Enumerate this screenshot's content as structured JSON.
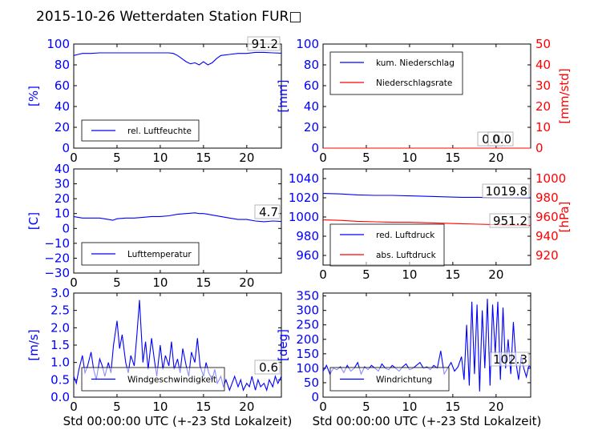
{
  "title": "2015-10-26 Wetterdaten Station FUR□",
  "colors": {
    "blue": "#0000ff",
    "red": "#ff0000",
    "black": "#000000"
  },
  "chart_data": [
    {
      "id": "humidity",
      "type": "line",
      "xlim": [
        0,
        24
      ],
      "ylim": [
        0,
        100
      ],
      "xticks": [
        "0",
        "5",
        "10",
        "15",
        "20"
      ],
      "yticks": [
        "0",
        "20",
        "40",
        "60",
        "80",
        "100"
      ],
      "ylabel": "[%]",
      "xlabel": "",
      "legend": "bottom-left",
      "series": [
        {
          "name": "rel. Luftfeuchte",
          "color": "#0000ff",
          "x": [
            0,
            0.5,
            1,
            2,
            3,
            4,
            5,
            6,
            7,
            8,
            9,
            10,
            11,
            11.5,
            12,
            12.5,
            13,
            13.5,
            14,
            14.5,
            15,
            15.5,
            16,
            16.5,
            17,
            18,
            19,
            20,
            21,
            22,
            23,
            24
          ],
          "y": [
            89,
            90,
            91,
            91,
            91.5,
            91.5,
            91.5,
            91.5,
            91.5,
            91.5,
            91.5,
            91.5,
            91.5,
            91,
            89,
            86,
            83,
            81,
            82,
            80,
            83,
            80,
            82,
            86,
            89,
            90,
            91,
            91,
            92,
            92,
            91.5,
            91.2
          ]
        }
      ],
      "annotation": "91.2"
    },
    {
      "id": "precip",
      "type": "line",
      "xlim": [
        0,
        24
      ],
      "ylim": [
        0,
        100
      ],
      "y2lim": [
        0,
        50
      ],
      "xticks": [
        "0",
        "5",
        "10",
        "15",
        "20"
      ],
      "yticks": [
        "0",
        "20",
        "40",
        "60",
        "80",
        "100"
      ],
      "y2ticks": [
        "0",
        "10",
        "20",
        "30",
        "40",
        "50"
      ],
      "ylabel": "[mm]",
      "y2label": "[mm/std]",
      "xlabel": "",
      "legend": "top-left",
      "series": [
        {
          "name": "kum. Niederschlag",
          "color": "#0000ff",
          "axis": "left",
          "x": [
            0,
            24
          ],
          "y": [
            0,
            0
          ]
        },
        {
          "name": "Niederschlagsrate",
          "color": "#ff0000",
          "axis": "right",
          "x": [
            0,
            24
          ],
          "y": [
            0,
            0
          ]
        }
      ],
      "annotations": [
        "0.0",
        "0.0"
      ]
    },
    {
      "id": "temperature",
      "type": "line",
      "xlim": [
        0,
        24
      ],
      "ylim": [
        -30,
        40
      ],
      "xticks": [
        "0",
        "5",
        "10",
        "15",
        "20"
      ],
      "yticks": [
        "−30",
        "−20",
        "−10",
        "0",
        "10",
        "20",
        "30",
        "40"
      ],
      "ylabel": "[C]",
      "xlabel": "",
      "legend": "bottom-left",
      "series": [
        {
          "name": "Lufttemperatur",
          "color": "#0000ff",
          "x": [
            0,
            0.5,
            1,
            2,
            3,
            4,
            4.5,
            5,
            6,
            7,
            8,
            9,
            10,
            11,
            12,
            13,
            14,
            14.5,
            15,
            15.5,
            16,
            17,
            18,
            19,
            20,
            21,
            22,
            23,
            24
          ],
          "y": [
            8,
            7.5,
            7,
            7,
            7,
            6,
            5.5,
            6.5,
            7,
            7,
            7.5,
            8,
            8,
            8.5,
            9.5,
            10,
            10.5,
            10,
            10,
            9.5,
            9,
            8,
            7,
            6,
            6,
            5,
            4.5,
            5,
            4.7
          ]
        }
      ],
      "annotation": "4.7"
    },
    {
      "id": "pressure",
      "type": "line",
      "xlim": [
        0,
        24
      ],
      "ylim": [
        950,
        1050
      ],
      "y2lim": [
        910,
        1010
      ],
      "xticks": [
        "0",
        "5",
        "10",
        "15",
        "20"
      ],
      "yticks": [
        "960",
        "980",
        "1000",
        "1020",
        "1040"
      ],
      "y2ticks": [
        "920",
        "940",
        "960",
        "980",
        "1000"
      ],
      "y2label": "[hPa]",
      "xlabel": "",
      "legend": "bottom-left",
      "series": [
        {
          "name": "red. Luftdruck",
          "color": "#0000ff",
          "axis": "left",
          "x": [
            0,
            2,
            4,
            6,
            8,
            10,
            12,
            14,
            16,
            18,
            20,
            22,
            24
          ],
          "y": [
            1024.5,
            1024,
            1023,
            1022.5,
            1022.5,
            1022,
            1021.5,
            1021,
            1020.5,
            1020.5,
            1020,
            1020,
            1019.8
          ]
        },
        {
          "name": "abs. Luftdruck",
          "color": "#ff0000",
          "axis": "right",
          "x": [
            0,
            2,
            4,
            6,
            8,
            10,
            12,
            14,
            16,
            18,
            20,
            22,
            24
          ],
          "y": [
            957,
            956.5,
            955.5,
            955,
            954.5,
            954.5,
            954,
            953.5,
            953,
            952.5,
            952,
            951.5,
            951.2
          ]
        }
      ],
      "annotations": [
        "1019.8",
        "951.2"
      ]
    },
    {
      "id": "wind-speed",
      "type": "line",
      "xlim": [
        0,
        24
      ],
      "ylim": [
        0,
        3
      ],
      "xticks": [
        "0",
        "5",
        "10",
        "15",
        "20"
      ],
      "yticks": [
        "0.0",
        "0.5",
        "1.0",
        "1.5",
        "2.0",
        "2.5",
        "3.0"
      ],
      "ylabel": "[m/s]",
      "xlabel": "Std 00:00:00 UTC (+-23 Std Lokalzeit)",
      "legend": "bottom-center",
      "series": [
        {
          "name": "Windgeschwindigkeit",
          "color": "#0000ff",
          "x": [
            0,
            0.3,
            0.6,
            1,
            1.3,
            1.6,
            2,
            2.3,
            2.6,
            3,
            3.3,
            3.6,
            4,
            4.3,
            4.6,
            5,
            5.3,
            5.6,
            6,
            6.3,
            6.6,
            7,
            7.3,
            7.6,
            8,
            8.3,
            8.6,
            9,
            9.3,
            9.6,
            10,
            10.3,
            10.6,
            11,
            11.3,
            11.6,
            12,
            12.3,
            12.6,
            13,
            13.3,
            13.6,
            14,
            14.3,
            14.6,
            15,
            15.3,
            15.6,
            16,
            16.3,
            16.6,
            17,
            17.3,
            17.6,
            18,
            18.3,
            18.6,
            19,
            19.3,
            19.6,
            20,
            20.3,
            20.6,
            21,
            21.3,
            21.6,
            22,
            22.3,
            22.6,
            23,
            23.3,
            23.6,
            24
          ],
          "y": [
            0.6,
            0.4,
            0.8,
            1.2,
            0.7,
            0.9,
            1.3,
            0.8,
            0.5,
            1.1,
            0.9,
            0.6,
            1.0,
            0.7,
            1.5,
            2.2,
            1.4,
            1.8,
            1.0,
            0.7,
            1.2,
            0.9,
            1.8,
            2.8,
            1.0,
            1.6,
            0.8,
            1.7,
            1.1,
            0.6,
            1.5,
            0.8,
            1.2,
            0.9,
            1.6,
            0.8,
            1.1,
            0.7,
            1.4,
            0.9,
            0.6,
            1.3,
            1.0,
            1.7,
            0.9,
            0.6,
            1.0,
            0.7,
            0.5,
            0.8,
            0.4,
            0.6,
            0.3,
            0.5,
            0.2,
            0.4,
            0.6,
            0.3,
            0.5,
            0.2,
            0.4,
            0.3,
            0.6,
            0.2,
            0.5,
            0.3,
            0.4,
            0.2,
            0.5,
            0.3,
            0.6,
            0.4,
            0.6
          ]
        }
      ],
      "annotation": "0.6"
    },
    {
      "id": "wind-direction",
      "type": "line",
      "xlim": [
        0,
        24
      ],
      "ylim": [
        0,
        360
      ],
      "xticks": [
        "0",
        "5",
        "10",
        "15",
        "20"
      ],
      "yticks": [
        "0",
        "50",
        "100",
        "150",
        "200",
        "250",
        "300",
        "350"
      ],
      "ylabel": "[deg]",
      "xlabel": "Std 00:00:00 UTC (+-23 Std Lokalzeit)",
      "legend": "bottom-center",
      "series": [
        {
          "name": "Windrichtung",
          "color": "#0000ff",
          "x": [
            0,
            0.4,
            0.8,
            1.2,
            1.6,
            2,
            2.4,
            2.8,
            3.2,
            3.6,
            4,
            4.4,
            4.8,
            5.2,
            5.6,
            6,
            6.4,
            6.8,
            7.2,
            7.6,
            8,
            8.4,
            8.8,
            9.2,
            9.6,
            10,
            10.4,
            10.8,
            11.2,
            11.6,
            12,
            12.4,
            12.8,
            13.2,
            13.6,
            14,
            14.4,
            14.8,
            15.2,
            15.6,
            16,
            16.3,
            16.6,
            16.9,
            17.2,
            17.5,
            17.8,
            18.1,
            18.4,
            18.7,
            19,
            19.3,
            19.6,
            19.9,
            20.2,
            20.5,
            20.8,
            21.1,
            21.4,
            21.7,
            22,
            22.3,
            22.6,
            22.9,
            23.2,
            23.5,
            23.8,
            24
          ],
          "y": [
            90,
            110,
            80,
            100,
            95,
            105,
            85,
            110,
            90,
            100,
            120,
            80,
            105,
            95,
            110,
            100,
            90,
            115,
            100,
            95,
            110,
            100,
            90,
            105,
            115,
            95,
            100,
            110,
            120,
            100,
            105,
            95,
            110,
            100,
            160,
            80,
            100,
            120,
            90,
            105,
            140,
            60,
            250,
            40,
            330,
            80,
            320,
            20,
            300,
            100,
            340,
            40,
            320,
            150,
            330,
            60,
            310,
            100,
            200,
            80,
            260,
            120,
            60,
            140,
            100,
            70,
            110,
            102
          ]
        }
      ],
      "annotation": "102.3"
    }
  ]
}
